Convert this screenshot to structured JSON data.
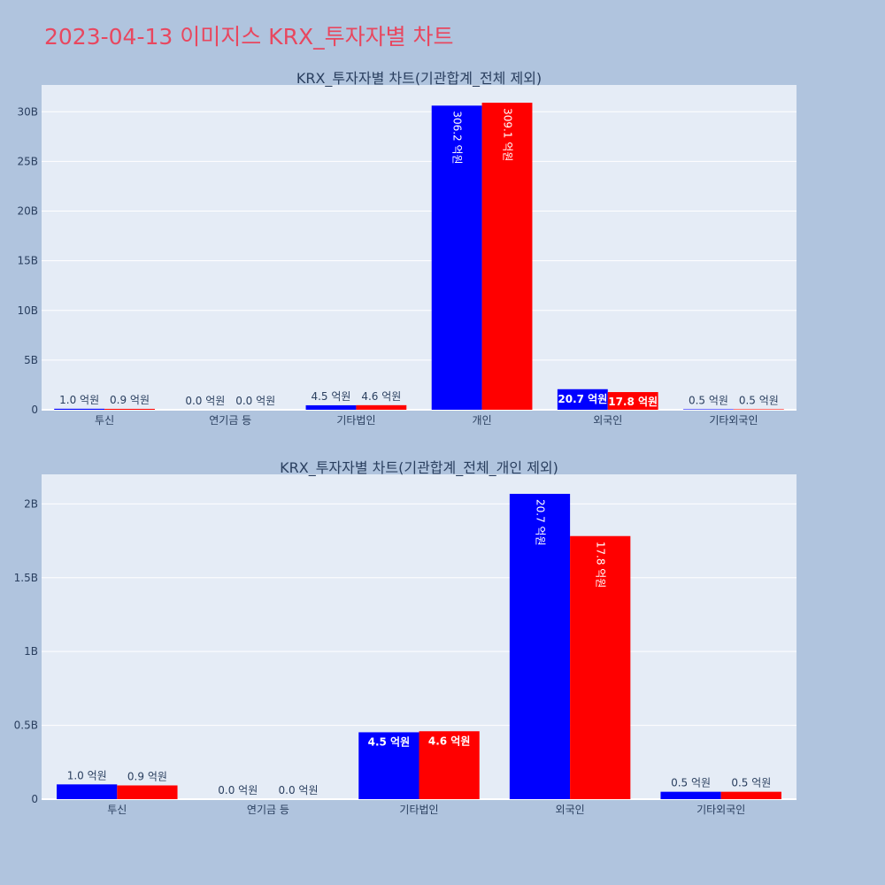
{
  "page": {
    "title": "2023-04-13 이미지스 KRX_투자자별 차트"
  },
  "colors": {
    "series_a": "#0000ff",
    "series_b": "#ff0000",
    "title": "#e8475f"
  },
  "chart_data": [
    {
      "type": "bar",
      "title": "KRX_투자자별 차트(기관합계_전체 제외)",
      "categories": [
        "투신",
        "연기금 등",
        "기타법인",
        "개인",
        "외국인",
        "기타외국인"
      ],
      "series": [
        {
          "values": [
            0.1,
            0.0,
            0.45,
            30.62,
            2.07,
            0.05
          ],
          "labels": [
            "1.0 억원",
            "0.0 억원",
            "4.5 억원",
            "306.2 억원",
            "20.7 억원",
            "0.5 억원"
          ]
        },
        {
          "values": [
            0.09,
            0.0,
            0.46,
            30.91,
            1.78,
            0.05
          ],
          "labels": [
            "0.9 억원",
            "0.0 억원",
            "4.6 억원",
            "309.1 억원",
            "17.8 억원",
            "0.5 억원"
          ]
        }
      ],
      "ylim": [
        0,
        32.7
      ],
      "yticks": [
        0,
        5,
        10,
        15,
        20,
        25,
        30
      ],
      "yticklabels": [
        "0",
        "5B",
        "10B",
        "15B",
        "20B",
        "25B",
        "30B"
      ],
      "grid": true
    },
    {
      "type": "bar",
      "title": "KRX_투자자별 차트(기관합계_전체_개인 제외)",
      "categories": [
        "투신",
        "연기금 등",
        "기타법인",
        "외국인",
        "기타외국인"
      ],
      "series": [
        {
          "values": [
            0.1,
            0.0,
            0.453,
            2.068,
            0.05
          ],
          "labels": [
            "1.0 억원",
            "0.0 억원",
            "4.5 억원",
            "20.7 억원",
            "0.5 억원"
          ]
        },
        {
          "values": [
            0.093,
            0.0,
            0.46,
            1.782,
            0.05
          ],
          "labels": [
            "0.9 억원",
            "0.0 억원",
            "4.6 억원",
            "17.8 억원",
            "0.5 억원"
          ]
        }
      ],
      "ylim": [
        0,
        2.2
      ],
      "yticks": [
        0,
        0.5,
        1,
        1.5,
        2
      ],
      "yticklabels": [
        "0",
        "0.5B",
        "1B",
        "1.5B",
        "2B"
      ],
      "grid": true
    }
  ]
}
